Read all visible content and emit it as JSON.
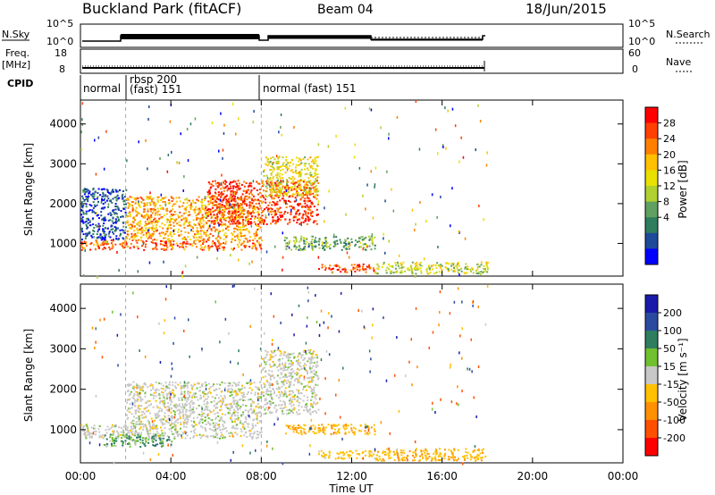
{
  "header": {
    "station": "Buckland Park (fitACF)",
    "beam": "Beam 04",
    "date": "18/Jun/2015"
  },
  "nsky_panel": {
    "left_label": "N.Sky",
    "left_ticks": [
      "10^5",
      "10^0"
    ],
    "right_ticks": [
      "10^5",
      "10^0"
    ],
    "right_label": "N.Search"
  },
  "freq_panel": {
    "left_label_1": "Freq.",
    "left_label_2": "[MHz]",
    "left_ticks": [
      "18",
      "8"
    ],
    "right_ticks": [
      "60",
      "0"
    ],
    "right_label": "Nave"
  },
  "cpid_panel": {
    "label": "CPID",
    "modes": [
      {
        "text_1": "normal",
        "text_2": ""
      },
      {
        "text_1": "rbsp 200",
        "text_2": "(fast)  151"
      },
      {
        "text_1": "normal (fast)  151",
        "text_2": ""
      }
    ]
  },
  "axes": {
    "ylabel": "Slant Range [km]",
    "y_ticks": [
      "4000",
      "3000",
      "2000",
      "1000"
    ],
    "x_ticks": [
      "00:00",
      "04:00",
      "08:00",
      "12:00",
      "16:00",
      "20:00",
      "00:00"
    ],
    "xlabel": "Time UT"
  },
  "power_scale": {
    "label": "Power [dB]",
    "ticks": [
      "28",
      "24",
      "20",
      "16",
      "12",
      "8",
      "4"
    ],
    "colors": [
      "#ff0000",
      "#ff4000",
      "#ff8000",
      "#ffc000",
      "#e8e000",
      "#b0d030",
      "#60a060",
      "#2e7d5e",
      "#1e4a9a",
      "#0000ff"
    ]
  },
  "velocity_scale": {
    "label": "Velocity [m s⁻¹]",
    "ticks": [
      "200",
      "100",
      "50",
      "15",
      "-15",
      "-50",
      "-100",
      "-200"
    ],
    "colors": [
      "#1a1aa8",
      "#2a4aa0",
      "#2e7d5e",
      "#70c030",
      "#c8c8c8",
      "#ffc000",
      "#ff9000",
      "#ff5000",
      "#ff0000"
    ]
  },
  "chart_data": [
    {
      "type": "heatmap",
      "title": "Power",
      "xlabel": "Time UT",
      "ylabel": "Slant Range [km]",
      "xlim": [
        0,
        24
      ],
      "ylim": [
        180,
        4600
      ],
      "colorbar": "Power [dB]",
      "regions": [
        {
          "t": [
            0.0,
            8.0
          ],
          "r": [
            850,
            1100
          ],
          "level": 26
        },
        {
          "t": [
            0.0,
            2.0
          ],
          "r": [
            1100,
            2400
          ],
          "level": 6
        },
        {
          "t": [
            2.0,
            8.0
          ],
          "r": [
            1100,
            2200
          ],
          "level": 22
        },
        {
          "t": [
            5.5,
            10.5
          ],
          "r": [
            1500,
            2600
          ],
          "level": 28
        },
        {
          "t": [
            8.0,
            10.5
          ],
          "r": [
            2200,
            3200
          ],
          "level": 18
        },
        {
          "t": [
            9.0,
            13.0
          ],
          "r": [
            850,
            1200
          ],
          "level": 12
        },
        {
          "t": [
            10.5,
            13.0
          ],
          "r": [
            300,
            500
          ],
          "level": 28
        },
        {
          "t": [
            13.0,
            18.0
          ],
          "r": [
            250,
            550
          ],
          "level": 16
        }
      ]
    },
    {
      "type": "heatmap",
      "title": "Velocity",
      "xlabel": "Time UT",
      "ylabel": "Slant Range [km]",
      "xlim": [
        0,
        24
      ],
      "ylim": [
        180,
        4600
      ],
      "colorbar": "Velocity [m s⁻¹]",
      "regions": [
        {
          "t": [
            0.0,
            8.0
          ],
          "r": [
            800,
            1150
          ],
          "level": 0
        },
        {
          "t": [
            2.0,
            8.0
          ],
          "r": [
            1150,
            2200
          ],
          "level": 0
        },
        {
          "t": [
            1.0,
            4.0
          ],
          "r": [
            600,
            900
          ],
          "level": 30
        },
        {
          "t": [
            8.0,
            10.5
          ],
          "r": [
            1400,
            3000
          ],
          "level": 0
        },
        {
          "t": [
            9.0,
            13.0
          ],
          "r": [
            900,
            1150
          ],
          "level": -40
        },
        {
          "t": [
            10.5,
            13.0
          ],
          "r": [
            300,
            500
          ],
          "level": -30
        },
        {
          "t": [
            13.0,
            18.0
          ],
          "r": [
            250,
            550
          ],
          "level": -40
        }
      ]
    }
  ]
}
